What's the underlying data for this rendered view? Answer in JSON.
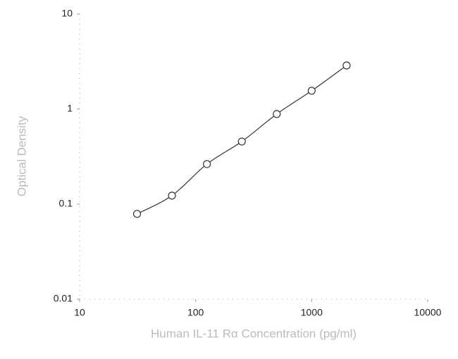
{
  "chart_data": {
    "type": "scatter",
    "log_x": true,
    "log_y": true,
    "fit_curve": true,
    "x_label": "Human IL-11 Rα Concentration (pg/ml)",
    "y_label": "Optical Density",
    "x": [
      31.25,
      62.5,
      125,
      250,
      500,
      1000,
      2000
    ],
    "values": [
      0.079,
      0.123,
      0.264,
      0.456,
      0.887,
      1.56,
      2.88
    ],
    "color": "#333333",
    "xlim": [
      10,
      10000
    ],
    "xticks": [
      10,
      100,
      1000,
      10000
    ],
    "ylim": [
      0.01,
      10
    ],
    "yticks": [
      0.01,
      0.1,
      1,
      10
    ]
  }
}
